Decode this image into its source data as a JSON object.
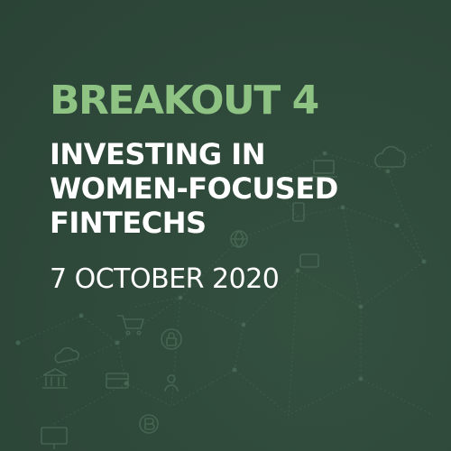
{
  "breakout_label": "BREAKOUT 4",
  "title_lines": [
    "INVESTING IN",
    "WOMEN-FOCUSED",
    "FINTECHS"
  ],
  "date": "7 OCTOBER 2020",
  "colors": {
    "background": "#2f4a3c",
    "accent_green": "#8ec384",
    "text": "#ffffff",
    "network_lines": "#4b6a57"
  },
  "background_icons": [
    "cloud-icon",
    "laptop-icon",
    "phone-icon",
    "globe-icon",
    "shopping-cart-icon",
    "lock-icon",
    "bank-icon",
    "credit-card-icon",
    "monitor-icon",
    "bitcoin-icon",
    "user-icon",
    "wallet-icon"
  ]
}
